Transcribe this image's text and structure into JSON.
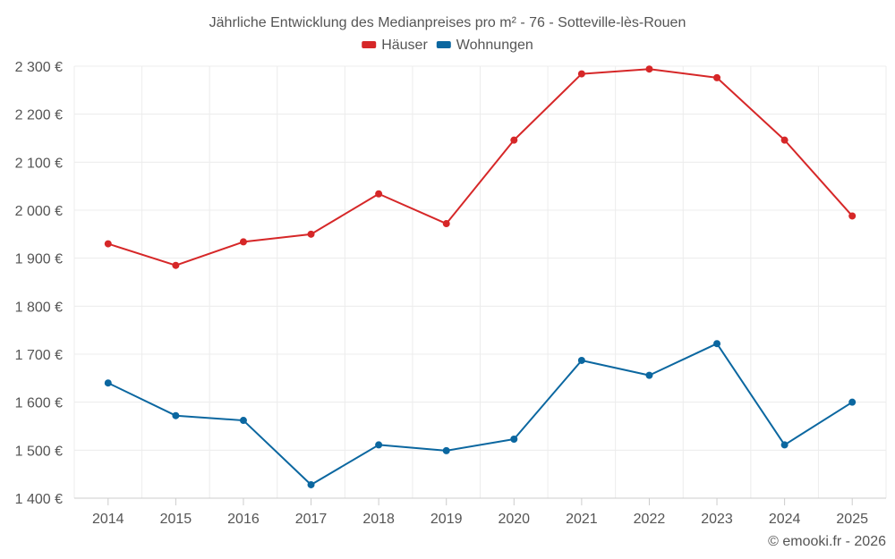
{
  "chart_data": {
    "type": "line",
    "title": "Jährliche Entwicklung des Medianpreises pro m² - 76 - Sotteville-lès-Rouen",
    "categories": [
      "2014",
      "2015",
      "2016",
      "2017",
      "2018",
      "2019",
      "2020",
      "2021",
      "2022",
      "2023",
      "2024",
      "2025"
    ],
    "series": [
      {
        "name": "Häuser",
        "color": "#d62728",
        "values": [
          1930,
          1885,
          1934,
          1950,
          2034,
          1972,
          2146,
          2284,
          2294,
          2276,
          2146,
          1988
        ]
      },
      {
        "name": "Wohnungen",
        "color": "#0b67a0",
        "values": [
          1640,
          1572,
          1562,
          1428,
          1511,
          1499,
          1523,
          1687,
          1656,
          1722,
          1511,
          1600
        ]
      }
    ],
    "ylim": [
      1400,
      2300
    ],
    "yticks": [
      1400,
      1500,
      1600,
      1700,
      1800,
      1900,
      2000,
      2100,
      2200,
      2300
    ],
    "ytick_labels": [
      "1 400 €",
      "1 500 €",
      "1 600 €",
      "1 700 €",
      "1 800 €",
      "1 900 €",
      "2 000 €",
      "2 100 €",
      "2 200 €",
      "2 300 €"
    ],
    "xlabel": "",
    "ylabel": "",
    "legend_position": "top-center",
    "grid": true
  },
  "credit": "© emooki.fr - 2026"
}
